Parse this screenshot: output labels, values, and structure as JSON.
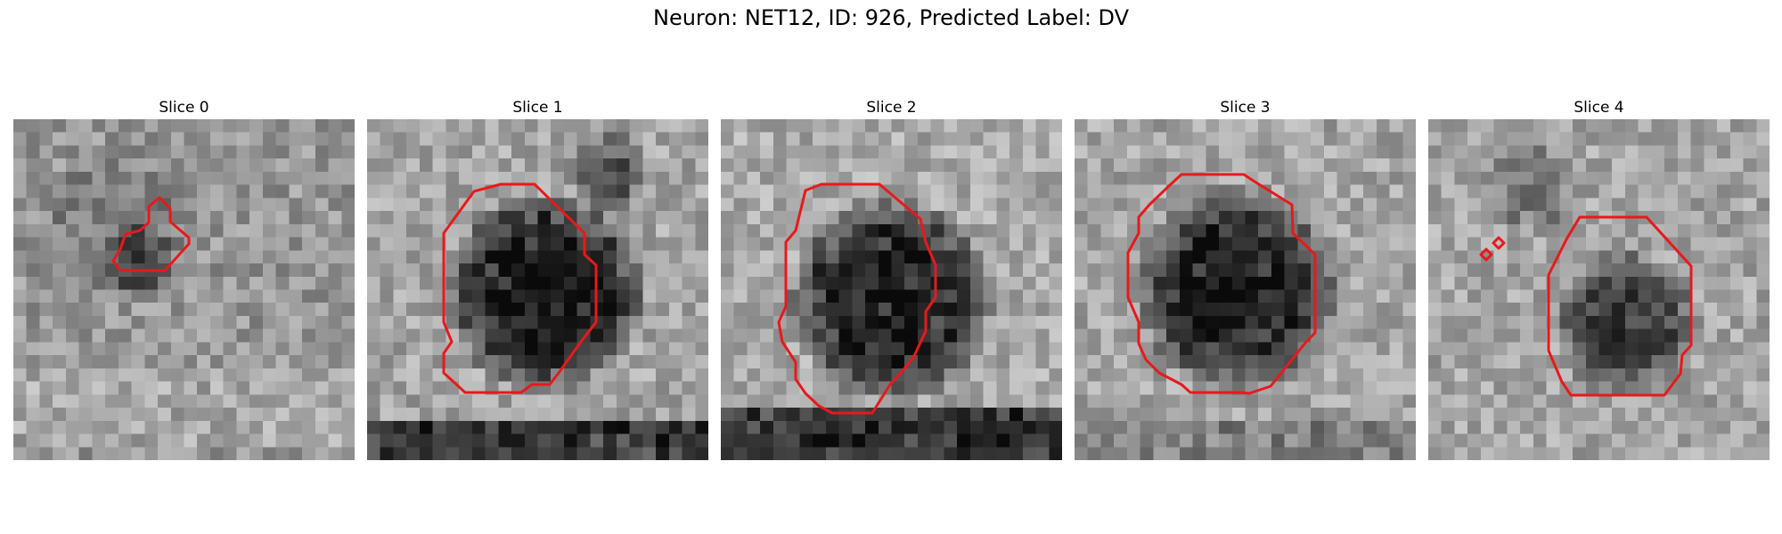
{
  "figure": {
    "title": "Neuron: NET12, ID: 926, Predicted Label: DV",
    "contour_color": "#e8191b",
    "slices": [
      {
        "title": "Slice 0"
      },
      {
        "title": "Slice 1"
      },
      {
        "title": "Slice 2"
      },
      {
        "title": "Slice 3"
      },
      {
        "title": "Slice 4"
      }
    ]
  }
}
